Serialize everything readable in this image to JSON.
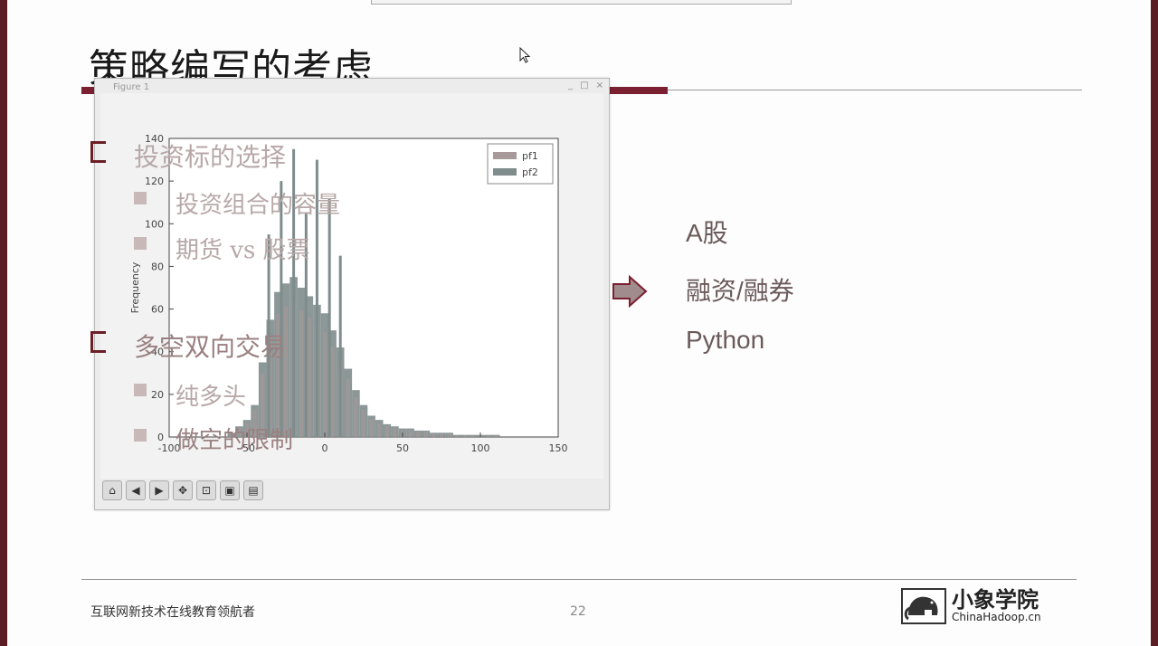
{
  "slide": {
    "title": "策略编写的考虑",
    "left_items": [
      {
        "text": "投资标的选择",
        "level": 1
      },
      {
        "text": "投资组合的容量",
        "level": 2
      },
      {
        "text": "期货 vs 股票",
        "level": 2
      },
      {
        "text": "多空双向交易",
        "level": 1
      },
      {
        "text": "纯多头",
        "level": 2
      },
      {
        "text": "做空的限制",
        "level": 2
      }
    ],
    "right_items": [
      "A股",
      "融资/融券",
      "Python"
    ],
    "footer_text": "互联网新技术在线教育领航者",
    "page_number": "22",
    "logo_name": "小象学院",
    "logo_url": "ChinaHadoop.cn"
  },
  "figure_window": {
    "title": "Figure 1",
    "controls": [
      "_",
      "□",
      "×"
    ],
    "toolbar": [
      "home-icon",
      "back-icon",
      "forward-icon",
      "pan-icon",
      "zoom-icon",
      "subplots-icon",
      "save-icon"
    ]
  },
  "colors": {
    "accent": "#7a2030",
    "pf1": "#a89a9a",
    "pf2": "#7f8c8c"
  },
  "chart_data": {
    "type": "bar",
    "ylabel": "Frequency",
    "xlim": [
      -100,
      150
    ],
    "ylim": [
      0,
      140
    ],
    "xticks": [
      -100,
      -50,
      0,
      50,
      100,
      150
    ],
    "yticks": [
      0,
      20,
      40,
      60,
      80,
      100,
      120,
      140
    ],
    "legend": "top-right",
    "series": [
      {
        "name": "pf1"
      },
      {
        "name": "pf2"
      }
    ],
    "x": [
      -60,
      -55,
      -50,
      -45,
      -40,
      -35,
      -30,
      -25,
      -20,
      -15,
      -10,
      -5,
      0,
      5,
      10,
      15,
      20,
      25,
      30,
      35,
      40,
      45,
      50,
      55,
      60,
      65,
      70,
      75,
      80,
      85,
      90,
      95,
      100,
      105,
      110,
      115,
      120,
      125,
      130,
      135,
      140
    ],
    "values": [
      2,
      5,
      8,
      15,
      35,
      55,
      68,
      72,
      75,
      70,
      66,
      62,
      58,
      50,
      42,
      32,
      22,
      15,
      10,
      8,
      6,
      5,
      4,
      4,
      3,
      3,
      2,
      2,
      2,
      1,
      1,
      1,
      1,
      1,
      1,
      0,
      0,
      0,
      0,
      0,
      0
    ],
    "spikes": [
      {
        "x": -36,
        "value": 95
      },
      {
        "x": -28,
        "value": 120
      },
      {
        "x": -20,
        "value": 135
      },
      {
        "x": -12,
        "value": 105
      },
      {
        "x": -5,
        "value": 130
      },
      {
        "x": 3,
        "value": 112
      },
      {
        "x": 10,
        "value": 85
      }
    ]
  }
}
